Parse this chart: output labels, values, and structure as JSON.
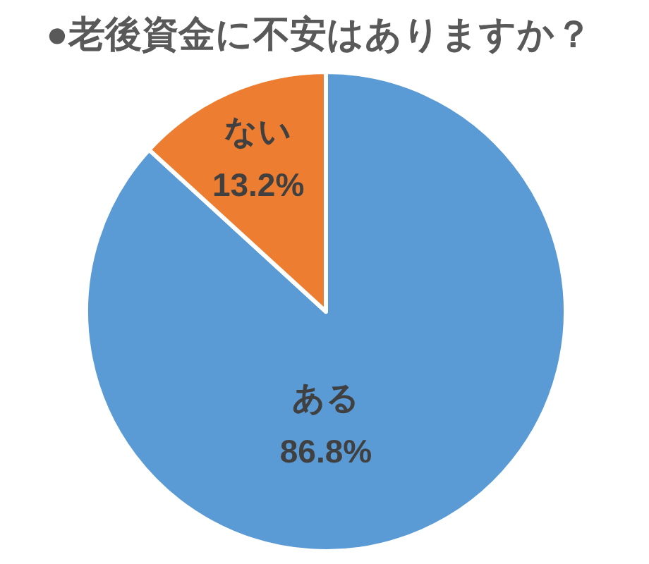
{
  "chart_data": {
    "type": "pie",
    "title": "●老後資金に不安はありますか？",
    "categories": [
      "ある",
      "ない"
    ],
    "values": [
      86.8,
      13.2
    ],
    "colors": [
      "#5b9bd5",
      "#ed7d31"
    ],
    "value_labels": [
      "86.8%",
      "13.2%"
    ]
  }
}
